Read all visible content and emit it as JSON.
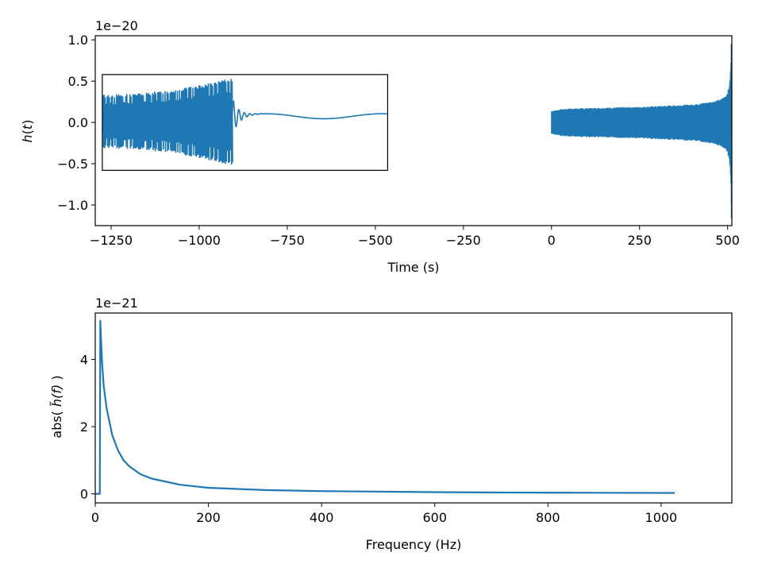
{
  "chart_data": [
    {
      "type": "line",
      "id": "time-domain",
      "xlabel": "Time (s)",
      "ylabel": "h(t)",
      "offset_text": "1e−20",
      "xlim": [
        -1295,
        512
      ],
      "ylim": [
        -1.25,
        1.05
      ],
      "xticks": [
        -1250,
        -1000,
        -750,
        -500,
        -250,
        0,
        250,
        500
      ],
      "xtick_labels": [
        "−1250",
        "−1000",
        "−750",
        "−500",
        "−250",
        "0",
        "250",
        "500"
      ],
      "yticks": [
        1.0,
        0.5,
        0.0,
        -0.5,
        -1.0
      ],
      "ytick_labels": [
        "1.0",
        "0.5",
        "0.0",
        "−0.5",
        "−1.0"
      ],
      "color": "#1f77b4",
      "grid": false,
      "series": [
        {
          "description_envelope": "oscillating strain, amplitude in units of 1e-20",
          "x": [
            0,
            25,
            50,
            100,
            150,
            200,
            250,
            300,
            350,
            400,
            450,
            480,
            495,
            502,
            506,
            509,
            510,
            511
          ],
          "amplitude": [
            0.14,
            0.16,
            0.17,
            0.175,
            0.18,
            0.185,
            0.19,
            0.2,
            0.21,
            0.22,
            0.25,
            0.28,
            0.33,
            0.4,
            0.5,
            0.7,
            0.95,
            1.15
          ]
        }
      ],
      "inset": {
        "x_range": [
          -1275,
          -465
        ],
        "y_range": [
          -0.58,
          0.58
        ],
        "description": "zoom of the merger: peak near y=0.52 and y=-0.53 then ringdown"
      }
    },
    {
      "type": "line",
      "id": "frequency-domain",
      "xlabel": "Frequency (Hz)",
      "ylabel_prefix": "abs( ",
      "ylabel_symbol": "h̃(f)",
      "ylabel_suffix": " )",
      "offset_text": "1e−21",
      "xlim": [
        0,
        1125
      ],
      "ylim": [
        -0.27,
        5.38
      ],
      "xticks": [
        0,
        200,
        400,
        600,
        800,
        1000
      ],
      "xtick_labels": [
        "0",
        "200",
        "400",
        "600",
        "800",
        "1000"
      ],
      "yticks": [
        0,
        2,
        4
      ],
      "ytick_labels": [
        "0",
        "2",
        "4"
      ],
      "color": "#1f77b4",
      "grid": false,
      "series": [
        {
          "x": [
            0,
            8,
            9,
            10,
            12,
            15,
            20,
            30,
            40,
            50,
            60,
            80,
            100,
            150,
            200,
            300,
            400,
            500,
            600,
            700,
            800,
            900,
            1024
          ],
          "y": [
            0,
            0,
            5.15,
            4.7,
            3.9,
            3.2,
            2.55,
            1.75,
            1.3,
            1.0,
            0.82,
            0.58,
            0.45,
            0.27,
            0.18,
            0.11,
            0.08,
            0.065,
            0.05,
            0.04,
            0.035,
            0.03,
            0.025
          ]
        }
      ]
    }
  ]
}
